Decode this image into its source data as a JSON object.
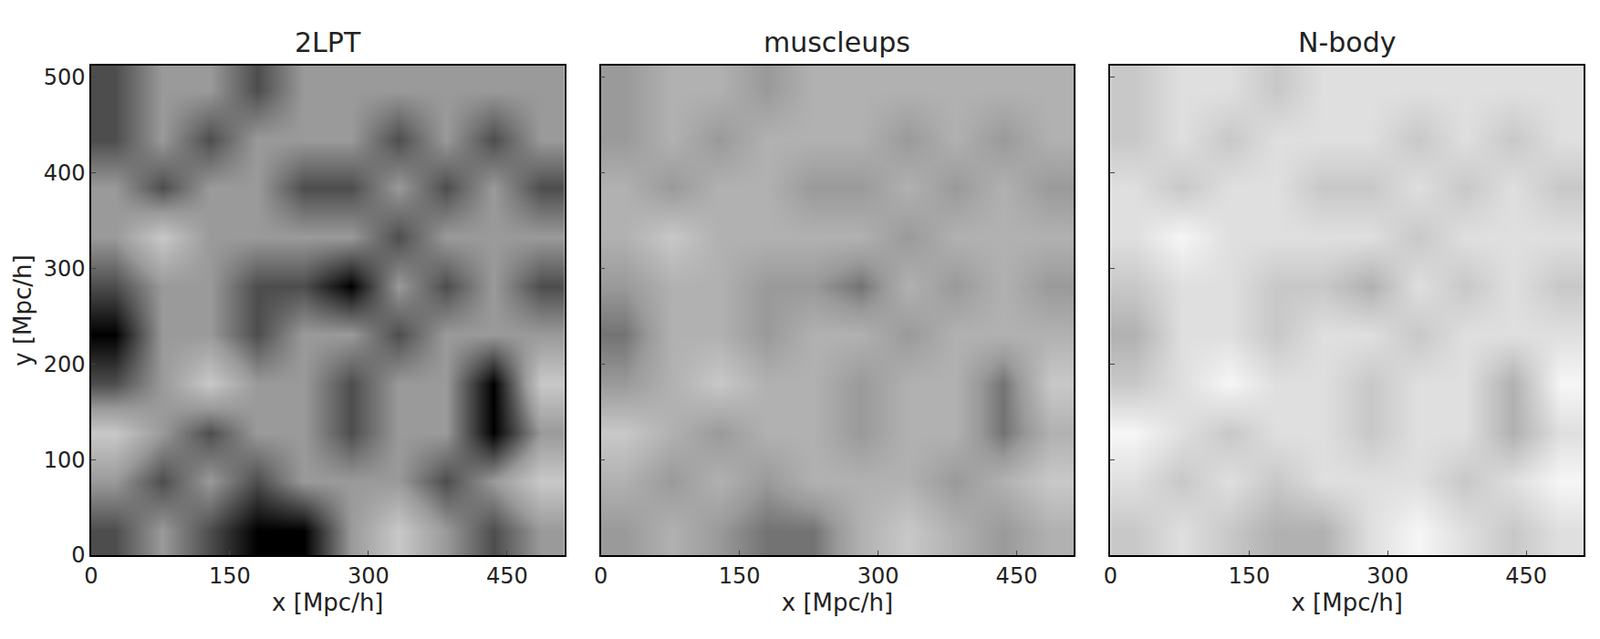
{
  "chart_data": [
    {
      "type": "heatmap",
      "title": "2LPT",
      "xlabel": "x [Mpc/h]",
      "ylabel": "y [Mpc/h]",
      "x": [
        25.6,
        76.8,
        128,
        179.2,
        230.4,
        281.6,
        332.8,
        384,
        435.2,
        486.4
      ],
      "y": [
        25.6,
        76.8,
        128,
        179.2,
        230.4,
        281.6,
        332.8,
        384,
        435.2,
        486.4
      ],
      "cells": [
        [
          0.6,
          0.5,
          0.6,
          0.7,
          0.7,
          0.5,
          0.4,
          0.5,
          0.6,
          0.5
        ],
        [
          0.5,
          0.6,
          0.5,
          0.6,
          0.5,
          0.5,
          0.5,
          0.6,
          0.5,
          0.4
        ],
        [
          0.4,
          0.5,
          0.6,
          0.5,
          0.5,
          0.6,
          0.5,
          0.5,
          0.7,
          0.5
        ],
        [
          0.6,
          0.5,
          0.4,
          0.5,
          0.5,
          0.6,
          0.5,
          0.5,
          0.7,
          0.4
        ],
        [
          0.7,
          0.5,
          0.5,
          0.6,
          0.5,
          0.5,
          0.6,
          0.5,
          0.5,
          0.5
        ],
        [
          0.6,
          0.5,
          0.5,
          0.6,
          0.6,
          0.7,
          0.5,
          0.6,
          0.5,
          0.6
        ],
        [
          0.5,
          0.4,
          0.5,
          0.5,
          0.5,
          0.5,
          0.6,
          0.5,
          0.5,
          0.5
        ],
        [
          0.5,
          0.6,
          0.5,
          0.5,
          0.6,
          0.6,
          0.5,
          0.6,
          0.5,
          0.6
        ],
        [
          0.6,
          0.5,
          0.6,
          0.5,
          0.5,
          0.5,
          0.6,
          0.5,
          0.6,
          0.5
        ],
        [
          0.6,
          0.5,
          0.5,
          0.6,
          0.5,
          0.5,
          0.5,
          0.5,
          0.5,
          0.5
        ]
      ],
      "xlim": [
        0,
        512
      ],
      "ylim": [
        0,
        512
      ],
      "xticks": [
        0,
        150,
        300,
        450
      ],
      "yticks": [
        0,
        100,
        200,
        300,
        400,
        500
      ],
      "grid": true
    },
    {
      "type": "heatmap",
      "title": "muscleups",
      "xlabel": "x [Mpc/h]",
      "x": [
        25.6,
        76.8,
        128,
        179.2,
        230.4,
        281.6,
        332.8,
        384,
        435.2,
        486.4
      ],
      "y": [
        25.6,
        76.8,
        128,
        179.2,
        230.4,
        281.6,
        332.8,
        384,
        435.2,
        486.4
      ],
      "cells": [
        [
          0.5,
          0.45,
          0.5,
          0.55,
          0.55,
          0.45,
          0.4,
          0.45,
          0.5,
          0.45
        ],
        [
          0.45,
          0.5,
          0.45,
          0.5,
          0.45,
          0.45,
          0.45,
          0.5,
          0.45,
          0.4
        ],
        [
          0.4,
          0.45,
          0.5,
          0.45,
          0.45,
          0.5,
          0.45,
          0.45,
          0.55,
          0.45
        ],
        [
          0.5,
          0.45,
          0.4,
          0.45,
          0.45,
          0.5,
          0.45,
          0.45,
          0.55,
          0.4
        ],
        [
          0.55,
          0.45,
          0.45,
          0.5,
          0.45,
          0.45,
          0.5,
          0.45,
          0.45,
          0.45
        ],
        [
          0.5,
          0.45,
          0.45,
          0.5,
          0.5,
          0.55,
          0.45,
          0.5,
          0.45,
          0.5
        ],
        [
          0.45,
          0.4,
          0.45,
          0.45,
          0.45,
          0.45,
          0.5,
          0.45,
          0.45,
          0.45
        ],
        [
          0.45,
          0.5,
          0.45,
          0.45,
          0.5,
          0.5,
          0.45,
          0.5,
          0.45,
          0.5
        ],
        [
          0.5,
          0.45,
          0.5,
          0.45,
          0.45,
          0.45,
          0.5,
          0.45,
          0.5,
          0.45
        ],
        [
          0.5,
          0.45,
          0.45,
          0.5,
          0.45,
          0.45,
          0.45,
          0.45,
          0.45,
          0.45
        ]
      ],
      "xlim": [
        0,
        512
      ],
      "ylim": [
        0,
        512
      ],
      "xticks": [
        0,
        150,
        300,
        450
      ],
      "yticks": [
        0,
        100,
        200,
        300,
        400,
        500
      ],
      "grid": true,
      "tick_labels": "x"
    },
    {
      "type": "heatmap",
      "title": "N-body",
      "xlabel": "x [Mpc/h]",
      "x": [
        25.6,
        76.8,
        128,
        179.2,
        230.4,
        281.6,
        332.8,
        384,
        435.2,
        486.4
      ],
      "y": [
        25.6,
        76.8,
        128,
        179.2,
        230.4,
        281.6,
        332.8,
        384,
        435.2,
        486.4
      ],
      "cells": [
        [
          0.4,
          0.35,
          0.4,
          0.45,
          0.45,
          0.35,
          0.3,
          0.35,
          0.4,
          0.35
        ],
        [
          0.35,
          0.4,
          0.35,
          0.4,
          0.35,
          0.35,
          0.35,
          0.4,
          0.35,
          0.3
        ],
        [
          0.3,
          0.35,
          0.4,
          0.35,
          0.35,
          0.4,
          0.35,
          0.35,
          0.45,
          0.35
        ],
        [
          0.4,
          0.35,
          0.3,
          0.35,
          0.35,
          0.4,
          0.35,
          0.35,
          0.45,
          0.3
        ],
        [
          0.45,
          0.35,
          0.35,
          0.4,
          0.35,
          0.35,
          0.4,
          0.35,
          0.35,
          0.35
        ],
        [
          0.4,
          0.35,
          0.35,
          0.4,
          0.4,
          0.45,
          0.35,
          0.4,
          0.35,
          0.4
        ],
        [
          0.35,
          0.3,
          0.35,
          0.35,
          0.35,
          0.35,
          0.4,
          0.35,
          0.35,
          0.35
        ],
        [
          0.35,
          0.4,
          0.35,
          0.35,
          0.4,
          0.4,
          0.35,
          0.4,
          0.35,
          0.4
        ],
        [
          0.4,
          0.35,
          0.4,
          0.35,
          0.35,
          0.35,
          0.4,
          0.35,
          0.4,
          0.35
        ],
        [
          0.4,
          0.35,
          0.35,
          0.4,
          0.35,
          0.35,
          0.35,
          0.35,
          0.35,
          0.35
        ]
      ],
      "xlim": [
        0,
        512
      ],
      "ylim": [
        0,
        512
      ],
      "xticks": [
        0,
        150,
        300,
        450
      ],
      "yticks": [
        0,
        100,
        200,
        300,
        400,
        500
      ],
      "grid": true,
      "tick_labels": "x"
    }
  ]
}
